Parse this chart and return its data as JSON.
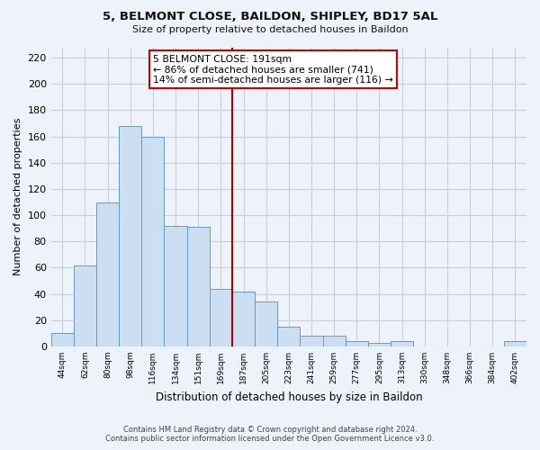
{
  "title": "5, BELMONT CLOSE, BAILDON, SHIPLEY, BD17 5AL",
  "subtitle": "Size of property relative to detached houses in Baildon",
  "xlabel": "Distribution of detached houses by size in Baildon",
  "ylabel": "Number of detached properties",
  "bar_labels": [
    "44sqm",
    "62sqm",
    "80sqm",
    "98sqm",
    "116sqm",
    "134sqm",
    "151sqm",
    "169sqm",
    "187sqm",
    "205sqm",
    "223sqm",
    "241sqm",
    "259sqm",
    "277sqm",
    "295sqm",
    "313sqm",
    "330sqm",
    "348sqm",
    "366sqm",
    "384sqm",
    "402sqm"
  ],
  "bar_values": [
    10,
    62,
    110,
    168,
    160,
    92,
    91,
    44,
    42,
    34,
    15,
    8,
    8,
    4,
    3,
    4,
    0,
    0,
    0,
    0,
    4
  ],
  "bar_color": "#ccdff2",
  "bar_edge_color": "#6699cc",
  "vline_x": 8.0,
  "marker_label": "5 BELMONT CLOSE: 191sqm",
  "annotation_line1": "← 86% of detached houses are smaller (741)",
  "annotation_line2": "14% of semi-detached houses are larger (116) →",
  "vline_color": "#aa0000",
  "ylim": [
    0,
    228
  ],
  "yticks": [
    0,
    20,
    40,
    60,
    80,
    100,
    120,
    140,
    160,
    180,
    200,
    220
  ],
  "footer_line1": "Contains HM Land Registry data © Crown copyright and database right 2024.",
  "footer_line2": "Contains public sector information licensed under the Open Government Licence v3.0.",
  "bg_color": "#eef2fa",
  "plot_bg_color": "#eef2fa",
  "grid_color": "#c8d0e0"
}
